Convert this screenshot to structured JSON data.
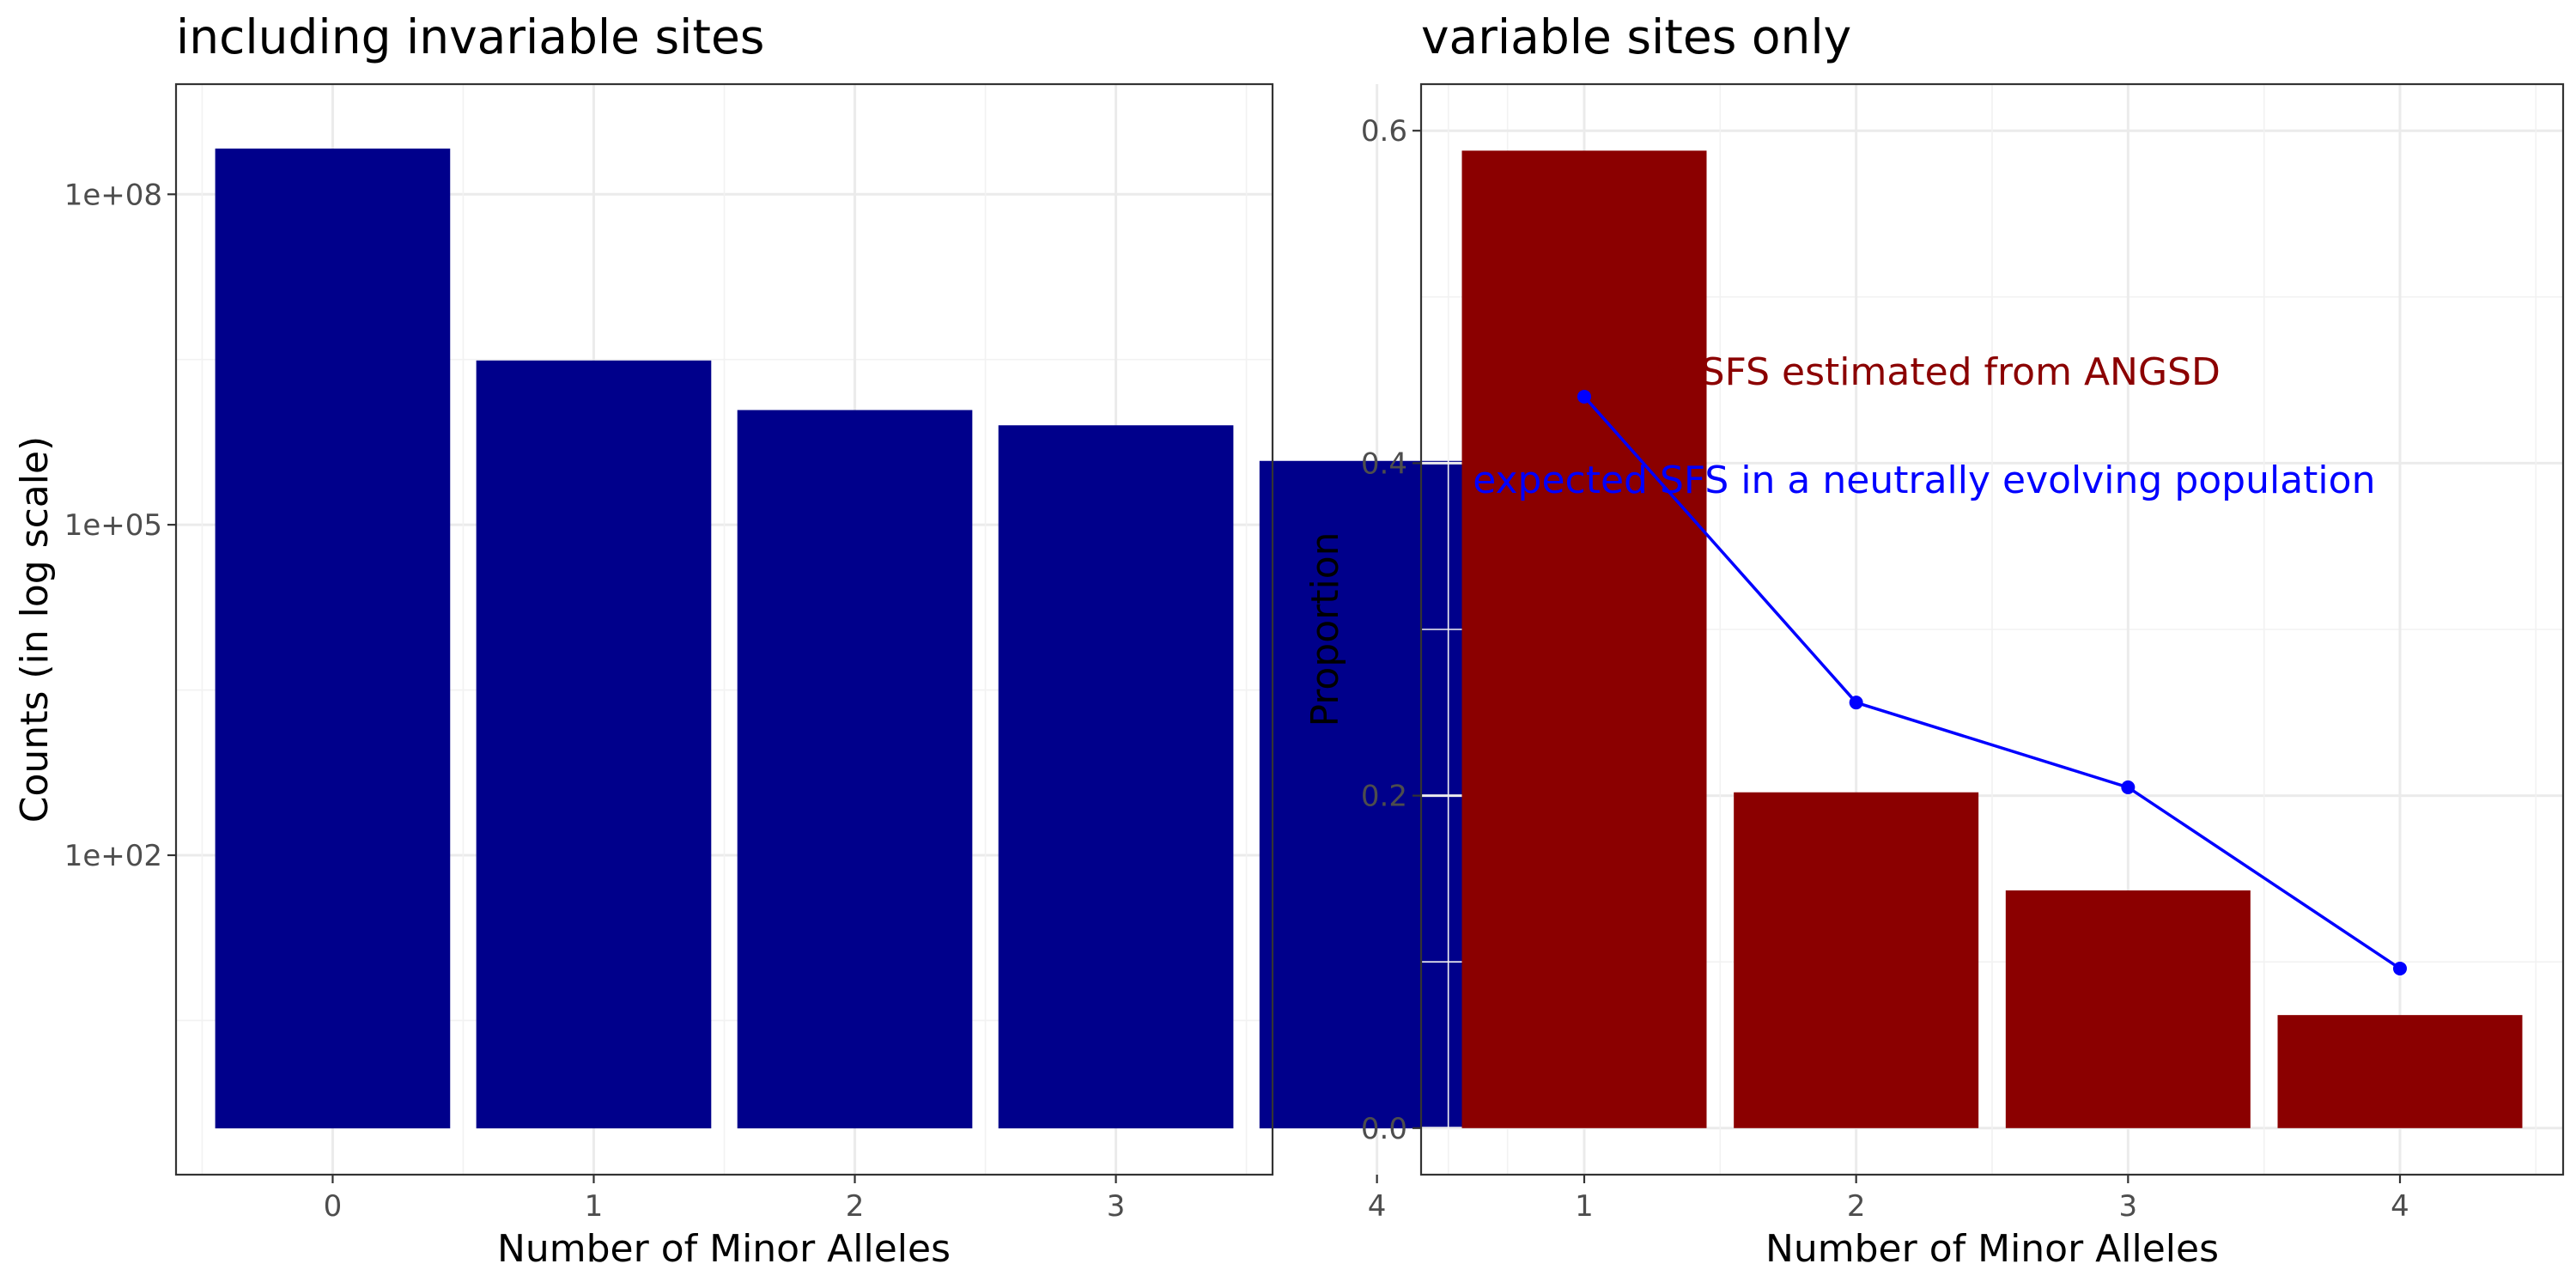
{
  "chart_data": [
    {
      "type": "bar",
      "title": "including invariable sites",
      "xlabel": "Number of Minor Alleles",
      "ylabel": "Counts (in log scale)",
      "y_scale": "log10",
      "categories": [
        "0",
        "1",
        "2",
        "3",
        "4"
      ],
      "values": [
        260000000,
        3100000,
        1100000,
        800000,
        380000
      ],
      "y_ticks": [
        {
          "value": 100,
          "label": "1e+02"
        },
        {
          "value": 100000,
          "label": "1e+05"
        },
        {
          "value": 100000000,
          "label": "1e+08"
        }
      ],
      "bar_color": "#00008B",
      "grid": true
    },
    {
      "type": "bar",
      "title": "variable sites only",
      "xlabel": "Number of Minor Alleles",
      "ylabel": "Proportion",
      "categories": [
        "1",
        "2",
        "3",
        "4"
      ],
      "values": [
        0.588,
        0.202,
        0.143,
        0.068
      ],
      "bar_color": "#8B0000",
      "ylim": [
        0,
        0.6
      ],
      "y_ticks": [
        {
          "value": 0.0,
          "label": "0.0"
        },
        {
          "value": 0.2,
          "label": "0.2"
        },
        {
          "value": 0.4,
          "label": "0.4"
        },
        {
          "value": 0.6,
          "label": "0.6"
        }
      ],
      "line_series": {
        "x": [
          "1",
          "2",
          "3",
          "4"
        ],
        "values": [
          0.44,
          0.256,
          0.205,
          0.096
        ],
        "color": "#0000FF"
      },
      "annotations": [
        {
          "text": "al SFS estimated from ANGSD",
          "color": "#8B0000",
          "x": 2.3,
          "y": 0.455
        },
        {
          "text": "expected SFS in a neutrally evolving population",
          "color": "#0000FF",
          "x": 2.25,
          "y": 0.39
        }
      ],
      "grid": true
    }
  ]
}
